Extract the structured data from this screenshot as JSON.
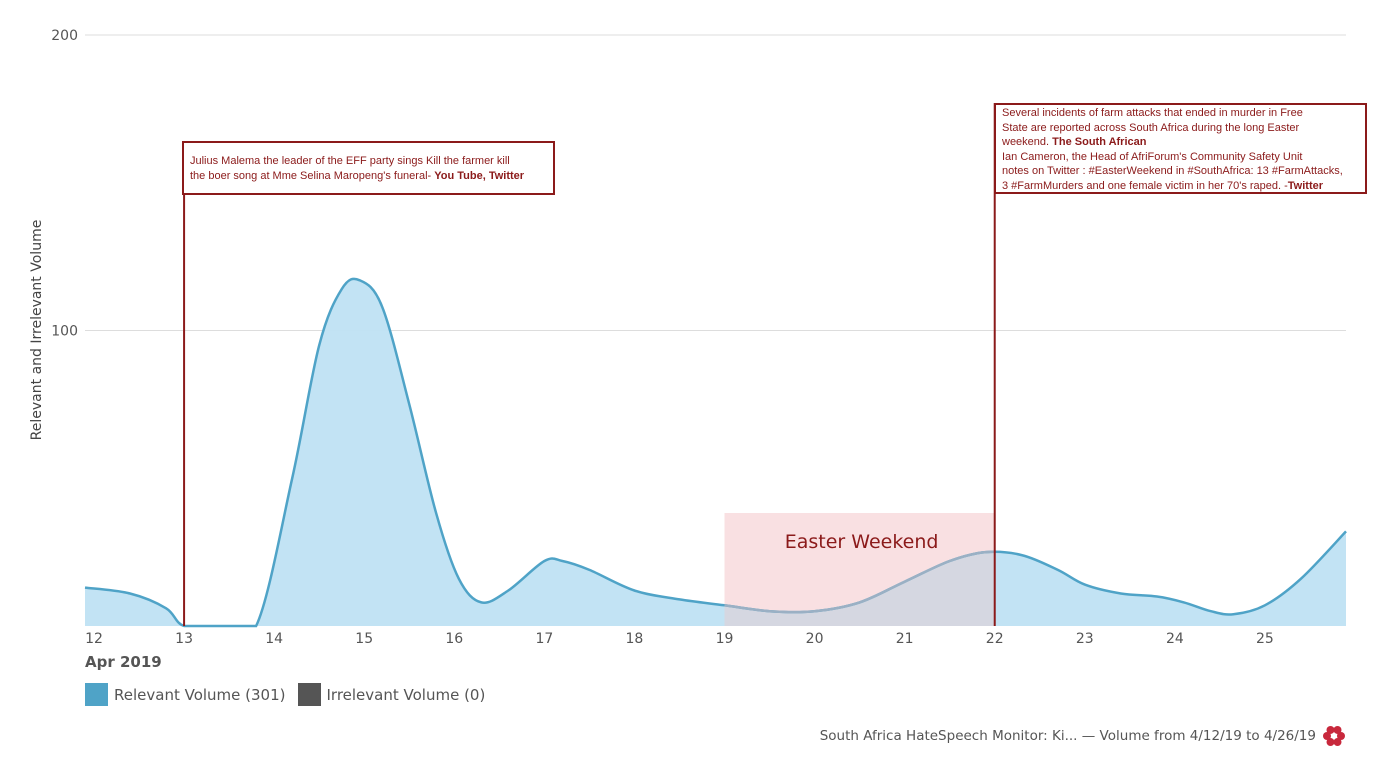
{
  "chart_data": {
    "type": "area",
    "ylabel": "Relevant and Irrelevant Volume",
    "xaxis_sublabel": "Apr 2019",
    "ylim": [
      0,
      200
    ],
    "yticks": [
      100,
      200
    ],
    "x_range": [
      11.9,
      25.9
    ],
    "xticks": [
      "12",
      "13",
      "14",
      "15",
      "16",
      "17",
      "18",
      "19",
      "20",
      "21",
      "22",
      "23",
      "24",
      "25"
    ],
    "grid": "horizontal",
    "series": [
      {
        "name": "Relevant Volume (301)",
        "color": "#4fa3c7",
        "fill": "#bfe2f3",
        "x": [
          11.9,
          12.4,
          12.8,
          13.0,
          13.4,
          13.8,
          14.2,
          14.5,
          14.75,
          14.95,
          15.2,
          15.5,
          15.8,
          16.05,
          16.3,
          16.6,
          17.0,
          17.2,
          17.5,
          18.0,
          18.5,
          19.0,
          19.5,
          20.0,
          20.5,
          21.0,
          21.5,
          21.9,
          22.3,
          22.7,
          23.0,
          23.4,
          23.8,
          24.1,
          24.4,
          24.65,
          25.0,
          25.4,
          25.9
        ],
        "y": [
          13,
          11,
          6,
          0,
          0,
          0,
          50,
          95,
          114,
          117,
          108,
          75,
          38,
          16,
          8,
          12,
          22,
          22,
          19,
          12,
          9,
          7,
          5,
          5,
          8,
          15,
          22,
          25,
          24,
          19,
          14,
          11,
          10,
          8,
          5,
          4,
          7,
          16,
          32
        ]
      },
      {
        "name": "Irrelevant Volume (0)",
        "color": "#555555",
        "values": []
      }
    ],
    "shaded_region": {
      "label": "Easter Weekend",
      "from": 19,
      "to": 22
    },
    "annotations": [
      {
        "x": 13,
        "lines": [
          [
            {
              "t": "Julius Malema the leader of the EFF party sings Kill the farmer kill"
            }
          ],
          [
            {
              "t": "the boer song at Mme Selina Maropeng's funeral- "
            },
            {
              "t": "You Tube, Twitter",
              "b": true
            }
          ]
        ]
      },
      {
        "x": 22,
        "lines": [
          [
            {
              "t": "Several incidents of farm attacks  that ended in murder in Free"
            }
          ],
          [
            {
              "t": "State are reported across South Africa during the long Easter"
            }
          ],
          [
            {
              "t": "weekend. "
            },
            {
              "t": "The South African",
              "b": true
            }
          ],
          [
            {
              "t": "Ian Cameron, the Head of AfriForum's Community Safety Unit"
            }
          ],
          [
            {
              "t": "notes on Twitter : #EasterWeekend in #SouthAfrica: 13 #FarmAttacks,"
            }
          ],
          [
            {
              "t": "3 #FarmMurders and one female victim in her 70's raped. -"
            },
            {
              "t": "Twitter",
              "b": true
            }
          ]
        ]
      }
    ]
  },
  "legend": {
    "items": [
      {
        "label": "Relevant Volume (301)",
        "color": "#4fa3c7"
      },
      {
        "label": "Irrelevant Volume (0)",
        "color": "#555555"
      }
    ]
  },
  "footer": {
    "text": "South Africa HateSpeech Monitor: Ki... — Volume from 4/12/19 to 4/26/19",
    "logo_icon": "flower-logo-icon",
    "logo_color": "#c8283c"
  },
  "colors": {
    "annotation": "#8b1a1a",
    "shaded_fill": "#f9e0e2",
    "grid": "#dddddd",
    "axis_text": "#555555"
  }
}
